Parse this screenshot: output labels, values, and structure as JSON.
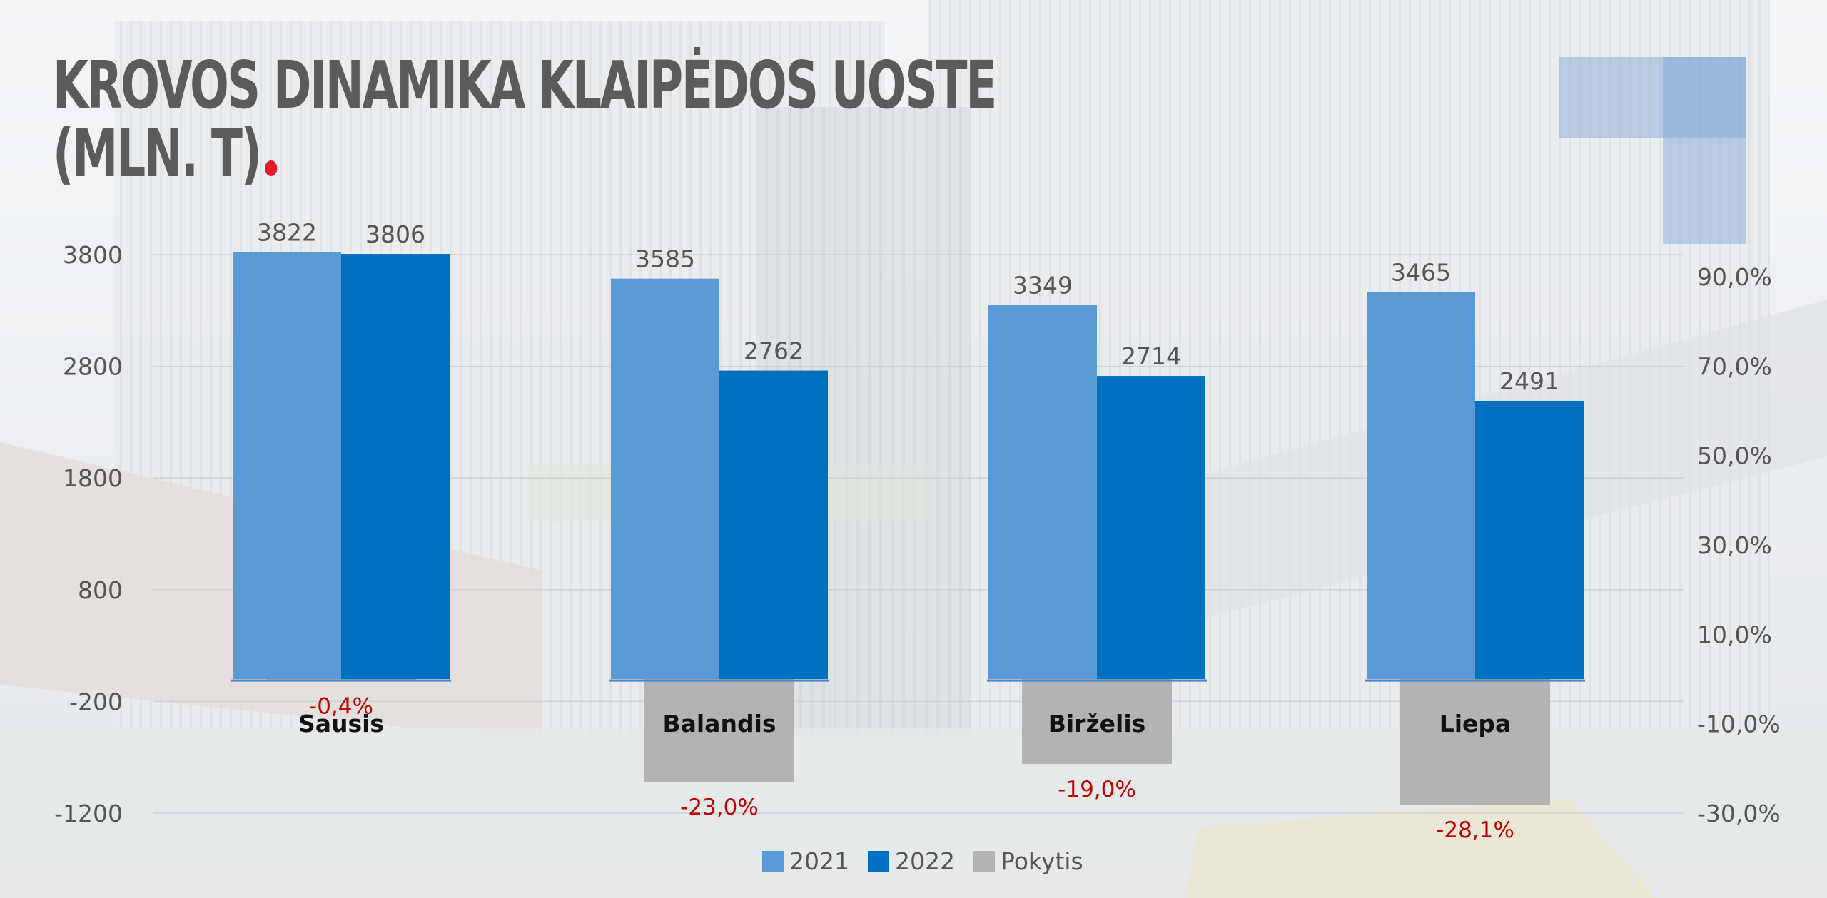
{
  "title": {
    "line1": "KROVOS DINAMIKA KLAIPĖDOS UOSTE",
    "line2": "(MLN. T)"
  },
  "colors": {
    "series_2021": "#5b9bd5",
    "series_2022": "#0070c0",
    "pokytis": "#b3b3b3",
    "pct_label": "#c00000",
    "axis_text": "#555555",
    "title_dot": "#e2192d"
  },
  "chart_data": {
    "type": "bar",
    "categories": [
      "Sausis",
      "Balandis",
      "Birželis",
      "Liepa"
    ],
    "series": [
      {
        "name": "2021",
        "axis": "left",
        "values": [
          3822,
          3585,
          3349,
          3465
        ]
      },
      {
        "name": "2022",
        "axis": "left",
        "values": [
          3806,
          2762,
          2714,
          2491
        ]
      },
      {
        "name": "Pokytis",
        "axis": "right",
        "values": [
          -0.4,
          -23.0,
          -19.0,
          -28.1
        ],
        "labels": [
          "-0,4%",
          "-23,0%",
          "-19,0%",
          "-28,1%"
        ]
      }
    ],
    "y_left": {
      "ylim": [
        -1200,
        3800
      ],
      "ticks": [
        3800,
        2800,
        1800,
        800,
        -200,
        -1200
      ],
      "tick_labels": [
        "3800",
        "2800",
        "1800",
        "800",
        "-200",
        "-1200"
      ]
    },
    "y_right": {
      "ylim": [
        -30,
        90
      ],
      "ticks": [
        90,
        70,
        50,
        30,
        10,
        -10,
        -30
      ],
      "tick_labels": [
        "90,0%",
        "70,0%",
        "50,0%",
        "30,0%",
        "10,0%",
        "-10,0%",
        "-30,0%"
      ]
    },
    "grid": true,
    "legend_position": "bottom"
  }
}
